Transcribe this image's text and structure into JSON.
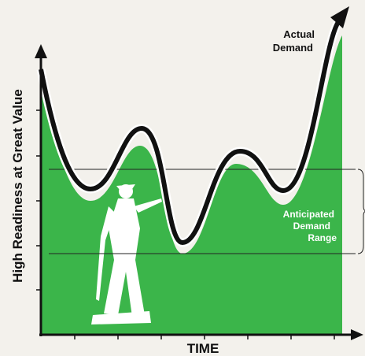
{
  "axes": {
    "y_label": "High Readiness at Great Value",
    "x_label": "TIME"
  },
  "annotations": {
    "actual_demand": [
      "Actual",
      "Demand"
    ],
    "anticipated_range": [
      "Anticipated",
      "Demand",
      "Range"
    ]
  }
}
